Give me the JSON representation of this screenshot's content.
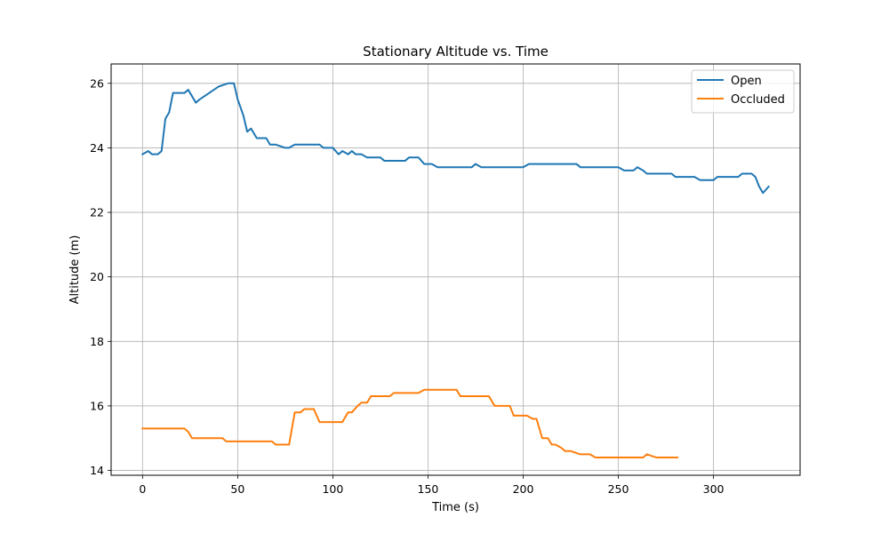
{
  "chart_data": {
    "type": "line",
    "title": "Stationary Altitude vs. Time",
    "xlabel": "Time (s)",
    "ylabel": "Altitude (m)",
    "xlim": [
      -16.5,
      345.5
    ],
    "ylim": [
      13.85,
      26.6
    ],
    "xticks": [
      0,
      50,
      100,
      150,
      200,
      250,
      300
    ],
    "yticks": [
      14,
      16,
      18,
      20,
      22,
      24,
      26
    ],
    "grid": true,
    "legend": "top-right",
    "series": [
      {
        "name": "Open",
        "color": "#1f77b4",
        "x": [
          0,
          3,
          5,
          8,
          10,
          12,
          14,
          16,
          18,
          20,
          22,
          24,
          26,
          28,
          30,
          35,
          40,
          45,
          48,
          50,
          53,
          55,
          57,
          60,
          65,
          67,
          70,
          75,
          77,
          80,
          85,
          90,
          93,
          95,
          100,
          103,
          105,
          108,
          110,
          112,
          115,
          118,
          120,
          125,
          127,
          130,
          135,
          138,
          140,
          145,
          148,
          152,
          155,
          160,
          165,
          170,
          173,
          175,
          178,
          180,
          185,
          190,
          195,
          200,
          203,
          205,
          210,
          215,
          220,
          225,
          228,
          230,
          235,
          240,
          245,
          250,
          253,
          255,
          258,
          260,
          263,
          265,
          270,
          275,
          278,
          280,
          285,
          290,
          293,
          295,
          300,
          302,
          305,
          310,
          313,
          315,
          318,
          320,
          322,
          324,
          326,
          329
        ],
        "values": [
          23.8,
          23.9,
          23.8,
          23.8,
          23.9,
          24.9,
          25.1,
          25.7,
          25.7,
          25.7,
          25.7,
          25.8,
          25.6,
          25.4,
          25.5,
          25.7,
          25.9,
          26.0,
          26.0,
          25.5,
          25.0,
          24.5,
          24.6,
          24.3,
          24.3,
          24.1,
          24.1,
          24.0,
          24.0,
          24.1,
          24.1,
          24.1,
          24.1,
          24.0,
          24.0,
          23.8,
          23.9,
          23.8,
          23.9,
          23.8,
          23.8,
          23.7,
          23.7,
          23.7,
          23.6,
          23.6,
          23.6,
          23.6,
          23.7,
          23.7,
          23.5,
          23.5,
          23.4,
          23.4,
          23.4,
          23.4,
          23.4,
          23.5,
          23.4,
          23.4,
          23.4,
          23.4,
          23.4,
          23.4,
          23.5,
          23.5,
          23.5,
          23.5,
          23.5,
          23.5,
          23.5,
          23.4,
          23.4,
          23.4,
          23.4,
          23.4,
          23.3,
          23.3,
          23.3,
          23.4,
          23.3,
          23.2,
          23.2,
          23.2,
          23.2,
          23.1,
          23.1,
          23.1,
          23.0,
          23.0,
          23.0,
          23.1,
          23.1,
          23.1,
          23.1,
          23.2,
          23.2,
          23.2,
          23.1,
          22.8,
          22.6,
          22.8
        ]
      },
      {
        "name": "Occluded",
        "color": "#ff7f0e",
        "x": [
          0,
          5,
          10,
          15,
          20,
          22,
          24,
          26,
          30,
          35,
          40,
          42,
          44,
          50,
          55,
          60,
          65,
          68,
          70,
          75,
          77,
          80,
          83,
          85,
          88,
          90,
          93,
          95,
          100,
          105,
          108,
          110,
          113,
          115,
          118,
          120,
          125,
          130,
          132,
          135,
          140,
          145,
          148,
          150,
          155,
          160,
          165,
          167,
          170,
          175,
          180,
          182,
          185,
          188,
          190,
          193,
          195,
          200,
          202,
          205,
          207,
          210,
          213,
          215,
          217,
          220,
          222,
          225,
          230,
          232,
          235,
          238,
          240,
          245,
          250,
          255,
          260,
          263,
          265,
          270,
          275,
          281
        ],
        "values": [
          15.3,
          15.3,
          15.3,
          15.3,
          15.3,
          15.3,
          15.2,
          15.0,
          15.0,
          15.0,
          15.0,
          15.0,
          14.9,
          14.9,
          14.9,
          14.9,
          14.9,
          14.9,
          14.8,
          14.8,
          14.8,
          15.8,
          15.8,
          15.9,
          15.9,
          15.9,
          15.5,
          15.5,
          15.5,
          15.5,
          15.8,
          15.8,
          16.0,
          16.1,
          16.1,
          16.3,
          16.3,
          16.3,
          16.4,
          16.4,
          16.4,
          16.4,
          16.5,
          16.5,
          16.5,
          16.5,
          16.5,
          16.3,
          16.3,
          16.3,
          16.3,
          16.3,
          16.0,
          16.0,
          16.0,
          16.0,
          15.7,
          15.7,
          15.7,
          15.6,
          15.6,
          15.0,
          15.0,
          14.8,
          14.8,
          14.7,
          14.6,
          14.6,
          14.5,
          14.5,
          14.5,
          14.4,
          14.4,
          14.4,
          14.4,
          14.4,
          14.4,
          14.4,
          14.5,
          14.4,
          14.4,
          14.4
        ]
      }
    ]
  }
}
